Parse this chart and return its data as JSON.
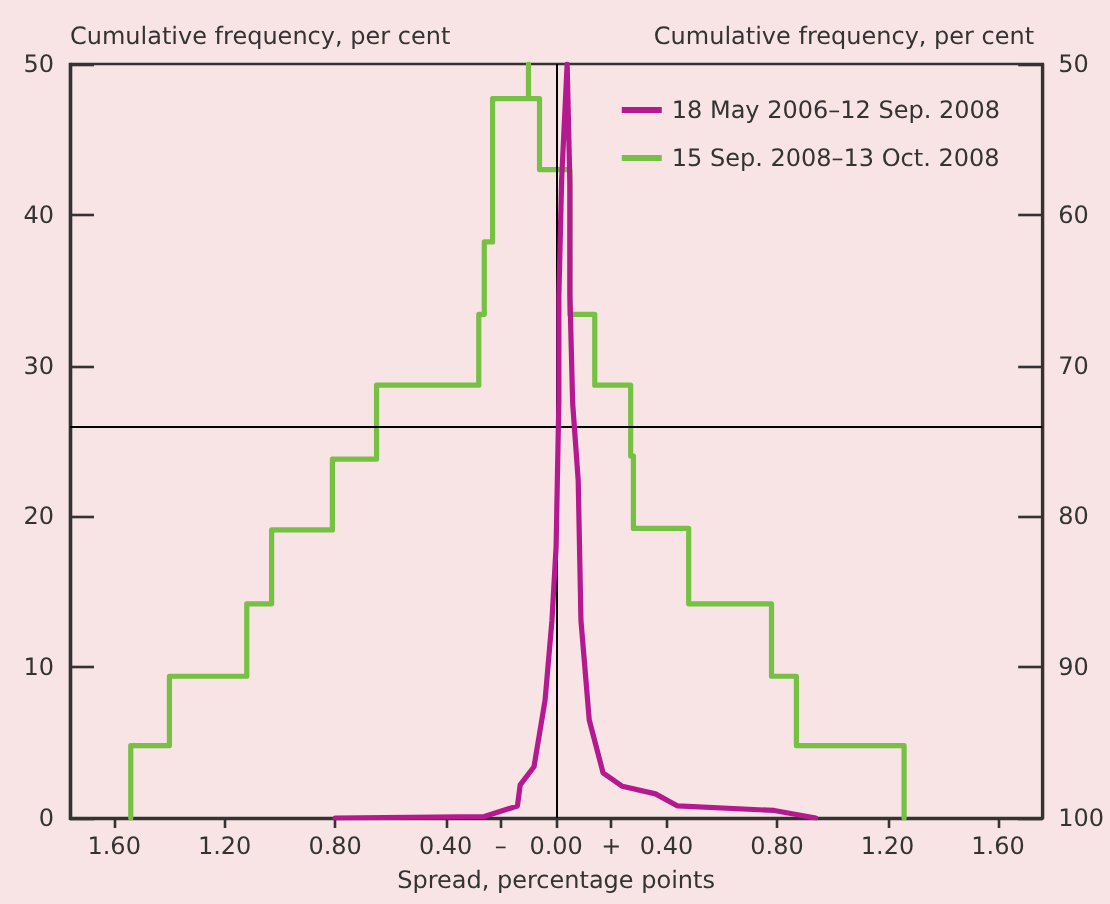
{
  "chart_data": {
    "type": "line",
    "ylabel": "Cumulative frequency, per cent",
    "y2label": "Cumulative frequency, per cent",
    "xlabel": "Spread, percentage points",
    "xlim": [
      -1.76,
      1.76
    ],
    "xticks": [
      {
        "value": -1.6,
        "label": "1.60"
      },
      {
        "value": -1.2,
        "label": "1.20"
      },
      {
        "value": -0.8,
        "label": "0.80"
      },
      {
        "value": -0.4,
        "label": "0.40"
      },
      {
        "value": -0.2,
        "label": "–"
      },
      {
        "value": 0,
        "label": "0.00"
      },
      {
        "value": 0.2,
        "label": "+"
      },
      {
        "value": 0.4,
        "label": "0.40"
      },
      {
        "value": 0.8,
        "label": "0.80"
      },
      {
        "value": 1.2,
        "label": "1.20"
      },
      {
        "value": 1.6,
        "label": "1.60"
      }
    ],
    "ylim": [
      0,
      50
    ],
    "yticks": [
      0,
      10,
      20,
      30,
      40,
      50
    ],
    "y2lim": [
      100,
      50
    ],
    "y2ticks": [
      50,
      60,
      70,
      80,
      90,
      100
    ],
    "series": [
      {
        "name": "18 May 2006–12 Sep. 2008",
        "color": "#b5198f",
        "x": [
          -0.8,
          -0.26,
          -0.14,
          -0.13,
          -0.08,
          -0.04,
          -0.015,
          0.0,
          0.01,
          0.01,
          0.02,
          0.04,
          0.05,
          0.05,
          0.06,
          0.08,
          0.09,
          0.12,
          0.17,
          0.24,
          0.36,
          0.44,
          0.79,
          0.94
        ],
        "values": [
          0,
          0.1,
          0.8,
          2.2,
          3.4,
          7.8,
          13.1,
          18,
          27.7,
          34.6,
          42.3,
          50,
          42,
          34.7,
          27.5,
          22.4,
          13.1,
          6.5,
          3.0,
          2.1,
          1.6,
          0.8,
          0.5,
          0
        ]
      },
      {
        "name": "15 Sep. 2008–13 Oct. 2008",
        "color": "#76c043",
        "x": [
          -1.54,
          -1.54,
          -1.4,
          -1.4,
          -1.12,
          -1.12,
          -1.03,
          -1.03,
          -0.81,
          -0.81,
          -0.65,
          -0.65,
          -0.28,
          -0.28,
          -0.26,
          -0.26,
          -0.23,
          -0.23,
          -0.1,
          -0.1,
          -0.1,
          -0.06,
          -0.06,
          0.05,
          0.05,
          0.14,
          0.14,
          0.27,
          0.27,
          0.28,
          0.28,
          0.48,
          0.48,
          0.78,
          0.78,
          0.87,
          0.87,
          1.26,
          1.26
        ],
        "values": [
          0,
          4.8,
          4.8,
          9.4,
          9.4,
          14.2,
          14.2,
          19.1,
          19.1,
          23.8,
          23.8,
          28.7,
          28.7,
          33.4,
          33.4,
          38.2,
          38.2,
          47.7,
          47.7,
          50,
          47.7,
          47.7,
          43,
          43,
          33.4,
          33.4,
          28.7,
          28.7,
          24,
          24,
          19.2,
          19.2,
          14.2,
          14.2,
          9.4,
          9.4,
          4.8,
          4.8,
          0
        ]
      }
    ],
    "ref_lines": [
      {
        "axis": "y",
        "value": 26,
        "color": "#000000"
      },
      {
        "axis": "x",
        "value": 0,
        "color": "#000000"
      }
    ],
    "legend": "top right",
    "marker": "none",
    "line_style": "solid",
    "grid": false
  }
}
